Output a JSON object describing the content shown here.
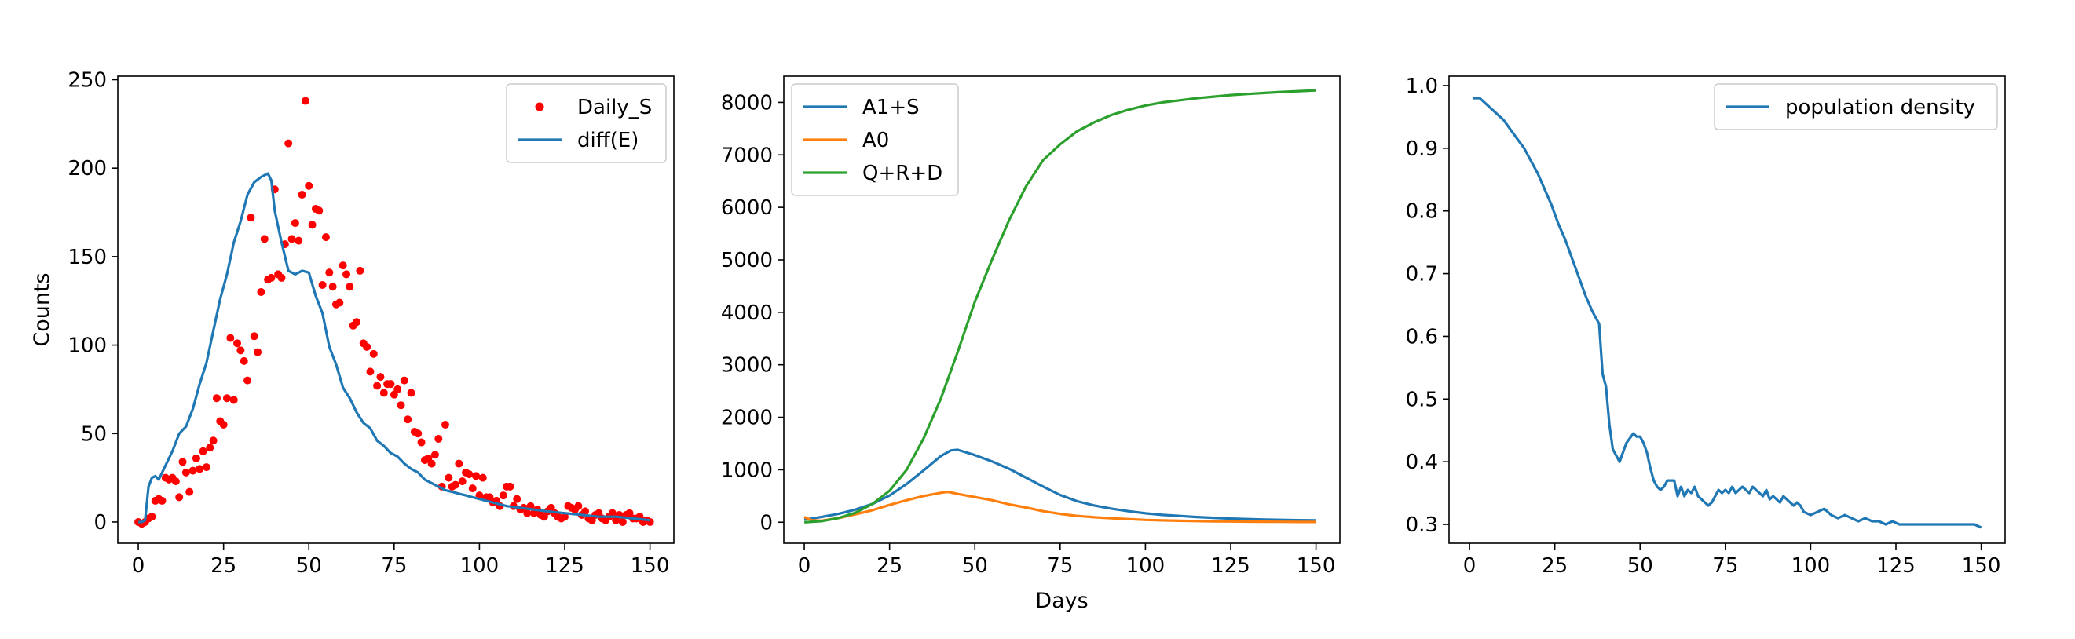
{
  "colors": {
    "blue": "#1f77b4",
    "orange": "#ff7f0e",
    "green": "#2ca02c",
    "red": "#ff0000"
  },
  "chart_data": [
    {
      "type": "scatter+line",
      "xlabel": "",
      "ylabel": "Counts",
      "xlim": [
        -6,
        157
      ],
      "ylim": [
        -12,
        252
      ],
      "xticks": [
        0,
        25,
        50,
        75,
        100,
        125,
        150
      ],
      "yticks": [
        0,
        50,
        100,
        150,
        200,
        250
      ],
      "legend": "top-right",
      "series": [
        {
          "name": "Daily_S",
          "kind": "scatter",
          "color": "#ff0000",
          "x": [
            0,
            1,
            2,
            3,
            4,
            5,
            6,
            7,
            8,
            9,
            10,
            11,
            12,
            13,
            14,
            15,
            16,
            17,
            18,
            19,
            20,
            21,
            22,
            23,
            24,
            25,
            26,
            27,
            28,
            29,
            30,
            31,
            32,
            33,
            34,
            35,
            36,
            37,
            38,
            39,
            40,
            41,
            42,
            43,
            44,
            45,
            46,
            47,
            48,
            49,
            50,
            51,
            52,
            53,
            54,
            55,
            56,
            57,
            58,
            59,
            60,
            61,
            62,
            63,
            64,
            65,
            66,
            67,
            68,
            69,
            70,
            71,
            72,
            73,
            74,
            75,
            76,
            77,
            78,
            79,
            80,
            81,
            82,
            83,
            84,
            85,
            86,
            87,
            88,
            89,
            90,
            91,
            92,
            93,
            94,
            95,
            96,
            97,
            98,
            99,
            100,
            101,
            102,
            103,
            104,
            105,
            106,
            107,
            108,
            109,
            110,
            111,
            112,
            113,
            114,
            115,
            116,
            117,
            118,
            119,
            120,
            121,
            122,
            123,
            124,
            125,
            126,
            127,
            128,
            129,
            130,
            131,
            132,
            133,
            134,
            135,
            136,
            137,
            138,
            139,
            140,
            141,
            142,
            143,
            144,
            145,
            146,
            147,
            148,
            149,
            150
          ],
          "y": [
            0,
            -1,
            0,
            2,
            3,
            12,
            13,
            12,
            25,
            24,
            25,
            23,
            14,
            34,
            28,
            17,
            29,
            36,
            30,
            40,
            31,
            42,
            46,
            70,
            57,
            55,
            70,
            104,
            69,
            101,
            97,
            91,
            80,
            172,
            105,
            96,
            130,
            160,
            137,
            138,
            188,
            140,
            138,
            157,
            214,
            160,
            169,
            159,
            185,
            238,
            190,
            168,
            177,
            176,
            134,
            161,
            141,
            133,
            123,
            124,
            145,
            140,
            133,
            111,
            113,
            142,
            101,
            99,
            85,
            95,
            77,
            82,
            73,
            78,
            78,
            72,
            75,
            66,
            80,
            58,
            73,
            51,
            50,
            45,
            35,
            36,
            33,
            38,
            47,
            20,
            55,
            25,
            20,
            21,
            33,
            23,
            28,
            27,
            19,
            26,
            15,
            25,
            14,
            14,
            11,
            12,
            9,
            15,
            20,
            20,
            9,
            13,
            7,
            8,
            5,
            9,
            5,
            7,
            4,
            3,
            6,
            8,
            5,
            3,
            2,
            3,
            9,
            8,
            7,
            9,
            4,
            6,
            2,
            1,
            4,
            5,
            2,
            1,
            3,
            5,
            1,
            4,
            0,
            4,
            5,
            2,
            2,
            3,
            0,
            1,
            0
          ]
        },
        {
          "name": "diff(E)",
          "kind": "line",
          "color": "#1f77b4",
          "x": [
            0,
            1,
            2,
            3,
            4,
            5,
            6,
            8,
            10,
            12,
            14,
            16,
            18,
            20,
            22,
            24,
            26,
            28,
            30,
            32,
            34,
            36,
            38,
            39,
            40,
            42,
            44,
            46,
            48,
            50,
            52,
            54,
            56,
            58,
            60,
            62,
            64,
            66,
            68,
            70,
            72,
            74,
            76,
            78,
            80,
            82,
            84,
            86,
            88,
            90,
            92,
            94,
            96,
            98,
            100,
            104,
            108,
            112,
            116,
            120,
            125,
            130,
            135,
            140,
            145,
            150
          ],
          "y": [
            0,
            0,
            1,
            20,
            25,
            26,
            24,
            32,
            40,
            50,
            54,
            64,
            78,
            90,
            108,
            126,
            140,
            158,
            170,
            185,
            192,
            195,
            197,
            193,
            176,
            158,
            142,
            140,
            142,
            141,
            128,
            118,
            99,
            89,
            76,
            70,
            62,
            56,
            53,
            46,
            43,
            39,
            37,
            33,
            30,
            28,
            24,
            22,
            20,
            18,
            17,
            16,
            15,
            14,
            13,
            11,
            9,
            8,
            7,
            6,
            5,
            4,
            3,
            3,
            2,
            1
          ]
        }
      ]
    },
    {
      "type": "line",
      "xlabel": "Days",
      "ylabel": "",
      "xlim": [
        -6,
        157
      ],
      "ylim": [
        -400,
        8500
      ],
      "xticks": [
        0,
        25,
        50,
        75,
        100,
        125,
        150
      ],
      "yticks": [
        0,
        1000,
        2000,
        3000,
        4000,
        5000,
        6000,
        7000,
        8000
      ],
      "legend": "top-left",
      "series": [
        {
          "name": "A1+S",
          "color": "#1f77b4",
          "x": [
            0,
            5,
            10,
            15,
            20,
            25,
            30,
            35,
            40,
            43,
            45,
            50,
            55,
            60,
            65,
            70,
            75,
            80,
            85,
            90,
            95,
            100,
            105,
            110,
            115,
            120,
            125,
            130,
            135,
            140,
            145,
            150
          ],
          "y": [
            50,
            100,
            160,
            240,
            350,
            510,
            730,
            990,
            1260,
            1370,
            1380,
            1280,
            1160,
            1020,
            850,
            680,
            520,
            400,
            320,
            260,
            210,
            170,
            140,
            120,
            100,
            85,
            70,
            60,
            52,
            46,
            40,
            35
          ]
        },
        {
          "name": "A0",
          "color": "#ff7f0e",
          "x": [
            0,
            2,
            5,
            10,
            15,
            20,
            25,
            30,
            35,
            40,
            42,
            45,
            50,
            55,
            60,
            65,
            70,
            75,
            80,
            85,
            90,
            95,
            100,
            105,
            110,
            115,
            120,
            125,
            130,
            135,
            140,
            145,
            150
          ],
          "y": [
            100,
            40,
            30,
            80,
            150,
            230,
            330,
            420,
            500,
            560,
            580,
            540,
            480,
            420,
            340,
            280,
            210,
            160,
            120,
            95,
            75,
            60,
            45,
            35,
            28,
            22,
            18,
            15,
            12,
            10,
            8,
            6,
            5
          ]
        },
        {
          "name": "Q+R+D",
          "color": "#2ca02c",
          "x": [
            0,
            5,
            10,
            15,
            20,
            25,
            30,
            35,
            40,
            45,
            50,
            55,
            60,
            65,
            70,
            75,
            80,
            85,
            90,
            95,
            100,
            105,
            110,
            115,
            120,
            125,
            130,
            135,
            140,
            145,
            150
          ],
          "y": [
            0,
            20,
            80,
            180,
            350,
            600,
            1000,
            1600,
            2350,
            3250,
            4200,
            5000,
            5750,
            6400,
            6900,
            7200,
            7450,
            7620,
            7760,
            7860,
            7940,
            8000,
            8040,
            8080,
            8110,
            8140,
            8160,
            8180,
            8200,
            8215,
            8230
          ]
        }
      ]
    },
    {
      "type": "line",
      "xlabel": "",
      "ylabel": "",
      "xlim": [
        -6,
        157
      ],
      "ylim": [
        0.27,
        1.015
      ],
      "xticks": [
        0,
        25,
        50,
        75,
        100,
        125,
        150
      ],
      "yticks": [
        0.3,
        0.4,
        0.5,
        0.6,
        0.7,
        0.8,
        0.9,
        1.0
      ],
      "legend": "top-right",
      "series": [
        {
          "name": "population density",
          "color": "#1f77b4",
          "x": [
            1,
            3,
            4,
            6,
            8,
            10,
            12,
            14,
            16,
            18,
            20,
            22,
            24,
            26,
            28,
            30,
            32,
            34,
            36,
            38,
            39,
            40,
            41,
            42,
            43,
            44,
            45,
            46,
            48,
            49,
            50,
            51,
            52,
            53,
            54,
            55,
            56,
            57,
            58,
            60,
            61,
            62,
            63,
            64,
            65,
            66,
            67,
            68,
            69,
            70,
            71,
            72,
            73,
            74,
            75,
            76,
            77,
            78,
            79,
            80,
            81,
            82,
            83,
            84,
            85,
            86,
            87,
            88,
            89,
            90,
            91,
            92,
            93,
            94,
            95,
            96,
            97,
            98,
            100,
            102,
            104,
            106,
            108,
            110,
            112,
            114,
            116,
            118,
            120,
            122,
            124,
            126,
            128,
            130,
            132,
            134,
            136,
            138,
            140,
            142,
            144,
            146,
            148,
            150
          ],
          "y": [
            0.98,
            0.98,
            0.975,
            0.965,
            0.955,
            0.945,
            0.93,
            0.915,
            0.9,
            0.88,
            0.86,
            0.835,
            0.81,
            0.78,
            0.755,
            0.725,
            0.695,
            0.665,
            0.64,
            0.62,
            0.54,
            0.52,
            0.46,
            0.42,
            0.41,
            0.4,
            0.415,
            0.43,
            0.445,
            0.44,
            0.44,
            0.43,
            0.415,
            0.39,
            0.37,
            0.36,
            0.355,
            0.36,
            0.37,
            0.37,
            0.345,
            0.36,
            0.345,
            0.355,
            0.35,
            0.36,
            0.345,
            0.34,
            0.335,
            0.33,
            0.335,
            0.345,
            0.355,
            0.35,
            0.355,
            0.35,
            0.36,
            0.35,
            0.355,
            0.36,
            0.355,
            0.35,
            0.36,
            0.355,
            0.35,
            0.345,
            0.355,
            0.34,
            0.345,
            0.34,
            0.335,
            0.345,
            0.34,
            0.335,
            0.33,
            0.335,
            0.33,
            0.32,
            0.315,
            0.32,
            0.325,
            0.315,
            0.31,
            0.315,
            0.31,
            0.305,
            0.31,
            0.305,
            0.305,
            0.3,
            0.305,
            0.3,
            0.3,
            0.3,
            0.3,
            0.3,
            0.3,
            0.3,
            0.3,
            0.3,
            0.3,
            0.3,
            0.3,
            0.295
          ]
        }
      ]
    }
  ]
}
